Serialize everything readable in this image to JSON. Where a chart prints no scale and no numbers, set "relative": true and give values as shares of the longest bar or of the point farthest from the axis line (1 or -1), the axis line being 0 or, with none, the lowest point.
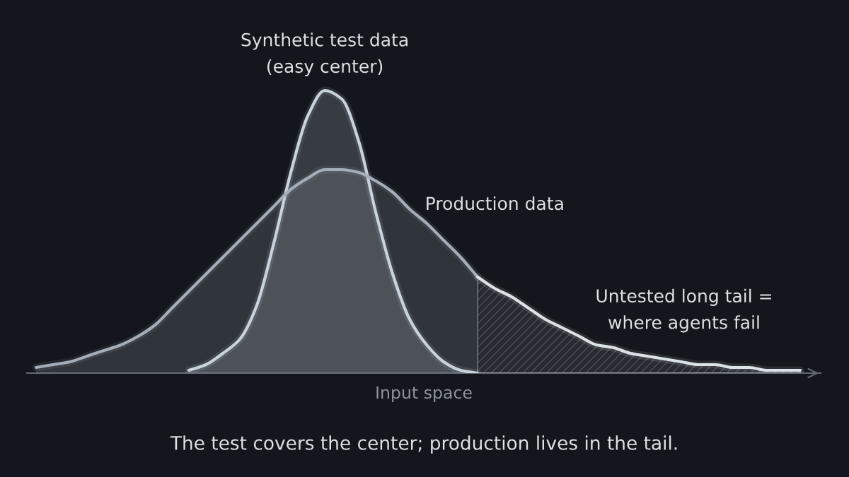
{
  "chart_data": {
    "type": "area",
    "relative": true,
    "tick_labels": false,
    "xlabel": "Input space",
    "categories": [
      null,
      null,
      null,
      null,
      null,
      null,
      null,
      null,
      null,
      null,
      null,
      null,
      null,
      null,
      null,
      null,
      null,
      null,
      null,
      null,
      null,
      null,
      null,
      null,
      null,
      null,
      null,
      null,
      null,
      null,
      null,
      null,
      null,
      null,
      null,
      null,
      null,
      null,
      null,
      null,
      null,
      null,
      null,
      null,
      null,
      null
    ],
    "series": [
      {
        "name": "Synthetic test data\n(easy center)",
        "color": "#c9d3db",
        "values": [
          null,
          null,
          null,
          null,
          null,
          null,
          null,
          null,
          null,
          0.01,
          0.03,
          0.07,
          0.12,
          0.24,
          0.46,
          0.71,
          0.91,
          1.0,
          0.97,
          0.82,
          0.57,
          0.35,
          0.19,
          0.1,
          0.04,
          0.01,
          0.0,
          null,
          null,
          null,
          null,
          null,
          null,
          null,
          null,
          null,
          null,
          null,
          null,
          null,
          null,
          null,
          null,
          null,
          null,
          null
        ]
      },
      {
        "name": "Production data",
        "color": "#a3aeb8",
        "values": [
          0.02,
          0.03,
          0.04,
          0.06,
          0.08,
          0.1,
          0.13,
          0.17,
          0.23,
          0.29,
          0.35,
          0.41,
          0.47,
          0.53,
          0.59,
          0.65,
          0.69,
          0.72,
          0.72,
          0.71,
          0.68,
          0.64,
          0.58,
          0.53,
          0.47,
          0.41,
          0.34,
          null,
          null,
          null,
          null,
          null,
          null,
          null,
          null,
          null,
          null,
          null,
          null,
          null,
          null,
          null,
          null,
          null,
          null,
          null
        ]
      },
      {
        "name": "Untested long tail =\nwhere agents fail",
        "color": "#dce3e8",
        "values": [
          null,
          null,
          null,
          null,
          null,
          null,
          null,
          null,
          null,
          null,
          null,
          null,
          null,
          null,
          null,
          null,
          null,
          null,
          null,
          null,
          null,
          null,
          null,
          null,
          null,
          null,
          0.34,
          0.3,
          0.27,
          0.23,
          0.19,
          0.16,
          0.13,
          0.1,
          0.09,
          0.07,
          0.06,
          0.05,
          0.04,
          0.03,
          0.03,
          0.02,
          0.02,
          0.01,
          0.01,
          0.01
        ]
      }
    ],
    "annotations": [
      "The test covers the center; production lives in the tail."
    ]
  }
}
